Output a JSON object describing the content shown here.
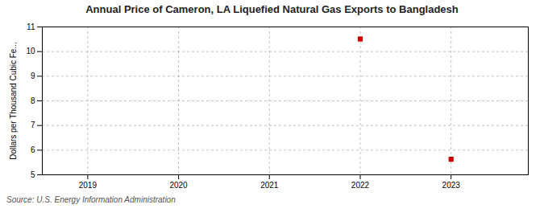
{
  "chart_data": {
    "type": "scatter",
    "title": "Annual Price of Cameron, LA Liquefied Natural Gas Exports to Bangladesh",
    "ylabel": "Dollars per Thousand Cubic Fe...",
    "source": "Source: U.S. Energy Information Administration",
    "x": [
      2022,
      2023
    ],
    "values": [
      10.51,
      5.63
    ],
    "color": "#cc0000",
    "marker": "square",
    "xlim": [
      2018.5,
      2023.85
    ],
    "ylim": [
      5,
      11
    ],
    "xticks": [
      2019,
      2020,
      2021,
      2022,
      2023
    ],
    "yticks": [
      5,
      6,
      7,
      8,
      9,
      10,
      11
    ],
    "grid": true
  }
}
